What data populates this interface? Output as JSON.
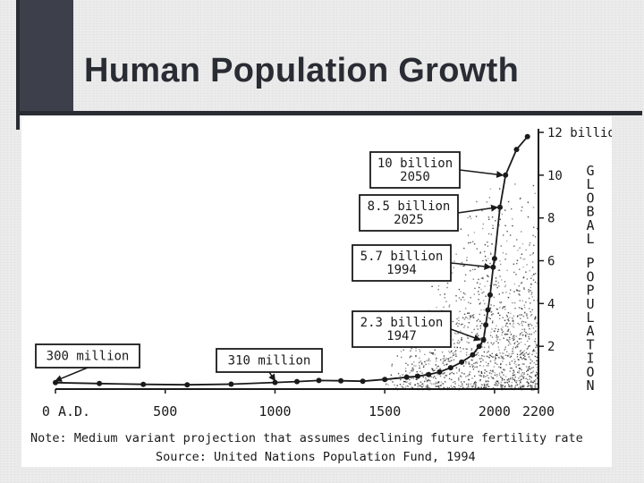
{
  "slide": {
    "title": "Human Population Growth"
  },
  "colors": {
    "ink": "#1a1a1a",
    "paper": "#ffffff",
    "accent_dark": "#3d3f4a",
    "background": "#ececec"
  },
  "chart_data": {
    "type": "line",
    "xlabel": "",
    "ylabel": "GLOBAL POPULATION",
    "xlim": [
      0,
      2200
    ],
    "ylim": [
      0,
      12
    ],
    "x_ticks": [
      "0 A.D.",
      "500",
      "1000",
      "1500",
      "2000",
      "2200"
    ],
    "y_ticks": [
      "2",
      "4",
      "6",
      "8",
      "10",
      "12 billion"
    ],
    "x_tick_values": [
      0,
      500,
      1000,
      1500,
      2000,
      2200
    ],
    "y_tick_values": [
      2,
      4,
      6,
      8,
      10,
      12
    ],
    "series": [
      {
        "x": [
          0,
          200,
          400,
          600,
          800,
          1000,
          1100,
          1200,
          1300,
          1400,
          1500,
          1600,
          1650,
          1700,
          1750,
          1800,
          1850,
          1900,
          1930,
          1950,
          1960,
          1970,
          1980,
          1994,
          2000,
          2025,
          2050,
          2100,
          2150
        ],
        "values": [
          0.3,
          0.26,
          0.22,
          0.2,
          0.23,
          0.31,
          0.35,
          0.4,
          0.39,
          0.37,
          0.45,
          0.55,
          0.6,
          0.68,
          0.8,
          1.0,
          1.26,
          1.6,
          2.0,
          2.3,
          3.0,
          3.7,
          4.4,
          5.7,
          6.1,
          8.5,
          10.0,
          11.2,
          11.8
        ]
      }
    ],
    "annotations": [
      {
        "lines": [
          "300 million"
        ],
        "x": 0,
        "y": 0.3
      },
      {
        "lines": [
          "310 million"
        ],
        "x": 1000,
        "y": 0.31
      },
      {
        "lines": [
          "2.3 billion",
          "1947"
        ],
        "x": 1947,
        "y": 2.3
      },
      {
        "lines": [
          "5.7 billion",
          "1994"
        ],
        "x": 1994,
        "y": 5.7
      },
      {
        "lines": [
          "8.5 billion",
          "2025"
        ],
        "x": 2025,
        "y": 8.5
      },
      {
        "lines": [
          "10 billion",
          "2050"
        ],
        "x": 2050,
        "y": 10.0
      }
    ],
    "note": "Note: Medium variant projection that assumes declining future fertility rate",
    "source": "Source: United Nations Population Fund, 1994"
  }
}
